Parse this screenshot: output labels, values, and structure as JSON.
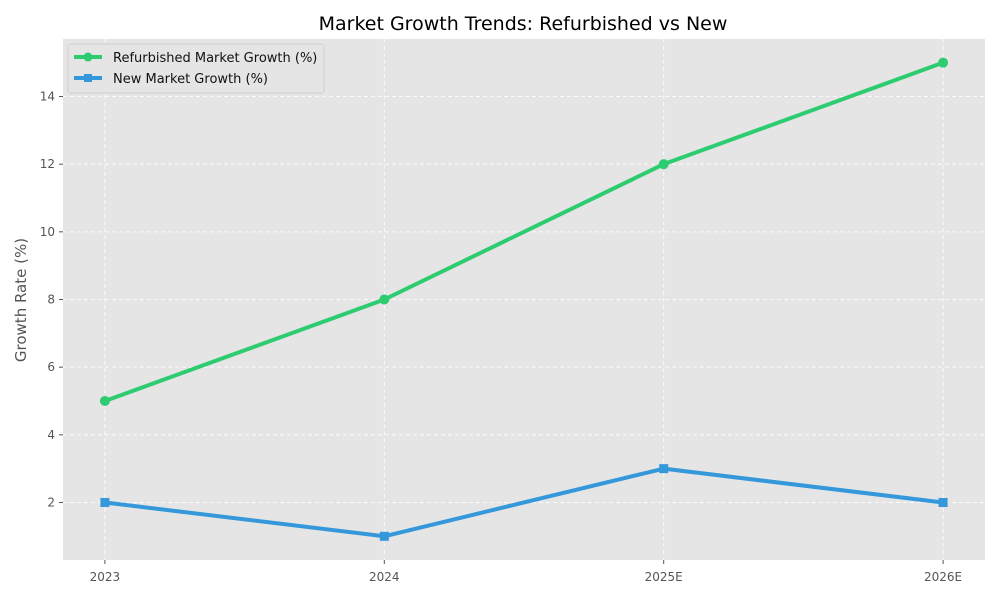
{
  "chart_data": {
    "type": "line",
    "title": "Market Growth Trends: Refurbished vs New",
    "xlabel": "",
    "ylabel": "Growth Rate (%)",
    "categories": [
      "2023",
      "2024",
      "2025E",
      "2026E"
    ],
    "ylim": [
      0.3,
      15.7
    ],
    "yticks": [
      2,
      4,
      6,
      8,
      10,
      12,
      14
    ],
    "grid": true,
    "legend_position": "top-left",
    "series": [
      {
        "name": "Refurbished Market Growth (%)",
        "values": [
          5,
          8,
          12,
          15
        ],
        "color": "#2ecc71",
        "marker": "circle"
      },
      {
        "name": "New Market Growth (%)",
        "values": [
          2,
          1,
          3,
          2
        ],
        "color": "#3498db",
        "marker": "square"
      }
    ]
  }
}
